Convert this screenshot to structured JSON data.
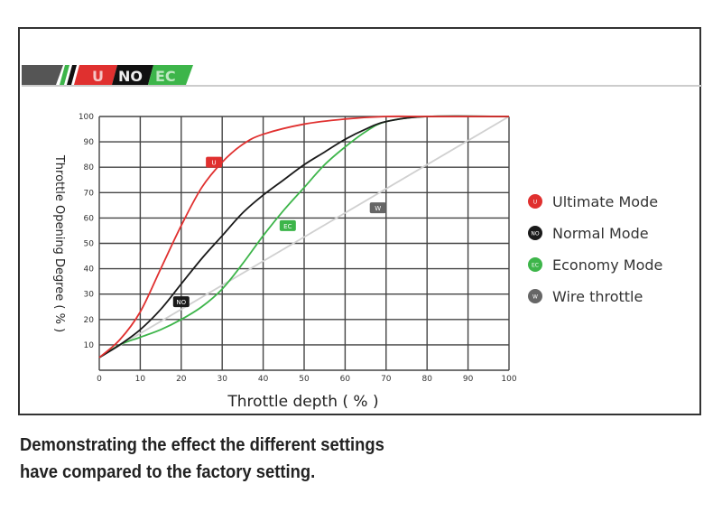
{
  "logo": {
    "badges": [
      "U",
      "NO",
      "EC"
    ]
  },
  "caption": {
    "line1": "Demonstrating the effect the different settings",
    "line2": "have compared to the factory setting."
  },
  "chart_data": {
    "type": "line",
    "title": "",
    "xlabel": "Throttle depth ( % )",
    "ylabel": "Throttle Opening Degree ( % )",
    "xlim": [
      0,
      100
    ],
    "ylim": [
      0,
      100
    ],
    "xticks": [
      0,
      10,
      20,
      30,
      40,
      50,
      60,
      70,
      80,
      90,
      100
    ],
    "yticks": [
      10,
      20,
      30,
      40,
      50,
      60,
      70,
      80,
      90,
      100
    ],
    "grid": true,
    "legend_position": "right",
    "series": [
      {
        "name": "Ultimate Mode",
        "badge": "U",
        "color": "#e0302f",
        "label_at": [
          28,
          82
        ],
        "x": [
          0,
          5,
          10,
          15,
          20,
          25,
          30,
          35,
          40,
          50,
          60,
          70,
          80,
          100
        ],
        "y": [
          5,
          12,
          23,
          40,
          57,
          72,
          82,
          89,
          93,
          97,
          99,
          100,
          100,
          100
        ]
      },
      {
        "name": "Normal Mode",
        "badge": "NO",
        "color": "#1a1a1a",
        "label_at": [
          20,
          27
        ],
        "x": [
          0,
          5,
          10,
          15,
          20,
          25,
          30,
          35,
          40,
          45,
          50,
          55,
          60,
          65,
          70,
          80,
          100
        ],
        "y": [
          5,
          10,
          16,
          24,
          34,
          44,
          53,
          62,
          69,
          75,
          81,
          86,
          91,
          95,
          98,
          100,
          100
        ]
      },
      {
        "name": "Economy Mode",
        "badge": "EC",
        "color": "#3db54a",
        "label_at": [
          46,
          57
        ],
        "x": [
          0,
          5,
          10,
          15,
          20,
          25,
          30,
          35,
          40,
          45,
          50,
          55,
          60,
          65,
          70,
          80,
          100
        ],
        "y": [
          5,
          10,
          13,
          16,
          20,
          25,
          32,
          42,
          53,
          63,
          72,
          81,
          88,
          94,
          98,
          100,
          100
        ]
      },
      {
        "name": "Wire throttle",
        "badge": "W",
        "color": "#666666",
        "line_color": "#d0d0d0",
        "label_at": [
          68,
          64
        ],
        "x": [
          0,
          100
        ],
        "y": [
          5,
          100
        ]
      }
    ]
  }
}
